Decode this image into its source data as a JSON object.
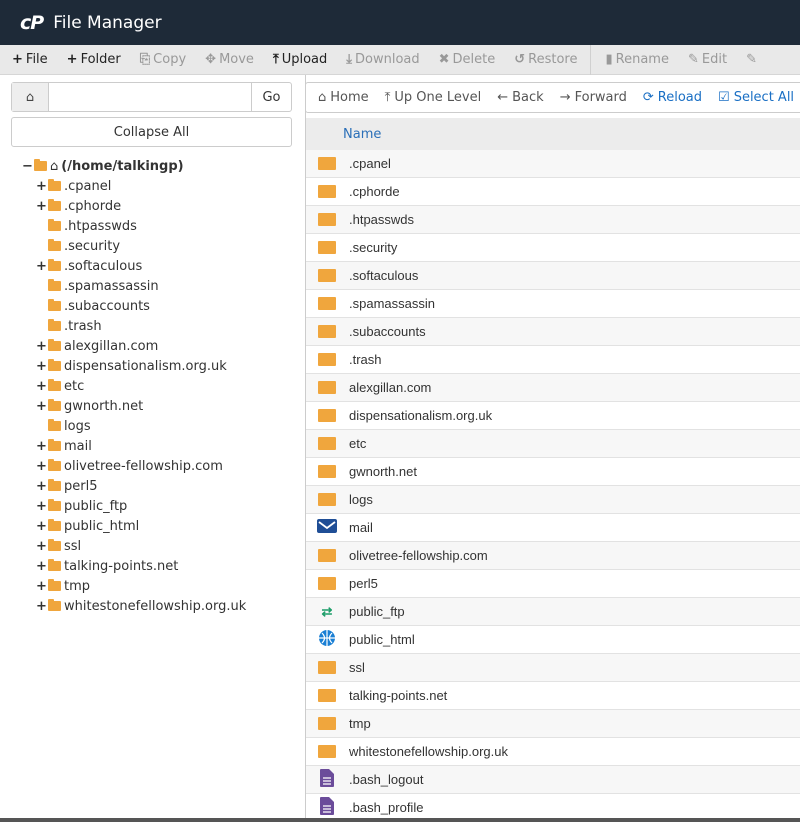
{
  "header": {
    "logo": "cP",
    "title": "File Manager"
  },
  "toolbar": [
    {
      "icon": "plus-icon",
      "glyph": "+",
      "label": "File",
      "enabled": true
    },
    {
      "icon": "plus-icon",
      "glyph": "+",
      "label": "Folder",
      "enabled": true
    },
    {
      "icon": "copy-icon",
      "glyph": "⎘",
      "label": "Copy",
      "enabled": false
    },
    {
      "icon": "move-icon",
      "glyph": "✥",
      "label": "Move",
      "enabled": false
    },
    {
      "icon": "upload-icon",
      "glyph": "⤒",
      "label": "Upload",
      "enabled": true
    },
    {
      "icon": "download-icon",
      "glyph": "⤓",
      "label": "Download",
      "enabled": false
    },
    {
      "icon": "delete-icon",
      "glyph": "✖",
      "label": "Delete",
      "enabled": false
    },
    {
      "icon": "restore-icon",
      "glyph": "↺",
      "label": "Restore",
      "enabled": false
    },
    {
      "icon": "rename-icon",
      "glyph": "▮",
      "label": "Rename",
      "enabled": false
    },
    {
      "icon": "edit-icon",
      "glyph": "✎",
      "label": "Edit",
      "enabled": false
    },
    {
      "icon": "html-editor-icon",
      "glyph": "✎",
      "label": "",
      "enabled": false
    }
  ],
  "search": {
    "value": "",
    "go_label": "Go"
  },
  "collapse_label": "Collapse All",
  "tree": {
    "root": "(/home/talkingp)",
    "items": [
      {
        "label": ".cpanel",
        "expandable": true
      },
      {
        "label": ".cphorde",
        "expandable": true
      },
      {
        "label": ".htpasswds",
        "expandable": false
      },
      {
        "label": ".security",
        "expandable": false
      },
      {
        "label": ".softaculous",
        "expandable": true
      },
      {
        "label": ".spamassassin",
        "expandable": false
      },
      {
        "label": ".subaccounts",
        "expandable": false
      },
      {
        "label": ".trash",
        "expandable": false
      },
      {
        "label": "alexgillan.com",
        "expandable": true
      },
      {
        "label": "dispensationalism.org.uk",
        "expandable": true
      },
      {
        "label": "etc",
        "expandable": true
      },
      {
        "label": "gwnorth.net",
        "expandable": true
      },
      {
        "label": "logs",
        "expandable": false
      },
      {
        "label": "mail",
        "expandable": true
      },
      {
        "label": "olivetree-fellowship.com",
        "expandable": true
      },
      {
        "label": "perl5",
        "expandable": true
      },
      {
        "label": "public_ftp",
        "expandable": true
      },
      {
        "label": "public_html",
        "expandable": true
      },
      {
        "label": "ssl",
        "expandable": true
      },
      {
        "label": "talking-points.net",
        "expandable": true
      },
      {
        "label": "tmp",
        "expandable": true
      },
      {
        "label": "whitestonefellowship.org.uk",
        "expandable": true
      }
    ]
  },
  "nav": [
    {
      "icon": "home-icon",
      "glyph": "⌂",
      "label": "Home",
      "accent": false
    },
    {
      "icon": "up-level-icon",
      "glyph": "⤒",
      "label": "Up One Level",
      "accent": false
    },
    {
      "icon": "back-icon",
      "glyph": "←",
      "label": "Back",
      "accent": false
    },
    {
      "icon": "forward-icon",
      "glyph": "→",
      "label": "Forward",
      "accent": false
    },
    {
      "icon": "reload-icon",
      "glyph": "⟳",
      "label": "Reload",
      "accent": true
    },
    {
      "icon": "select-all-icon",
      "glyph": "☑",
      "label": "Select All",
      "accent": true
    }
  ],
  "table": {
    "header": "Name",
    "rows": [
      {
        "name": ".cpanel",
        "type": "folder"
      },
      {
        "name": ".cphorde",
        "type": "folder"
      },
      {
        "name": ".htpasswds",
        "type": "folder"
      },
      {
        "name": ".security",
        "type": "folder"
      },
      {
        "name": ".softaculous",
        "type": "folder"
      },
      {
        "name": ".spamassassin",
        "type": "folder"
      },
      {
        "name": ".subaccounts",
        "type": "folder"
      },
      {
        "name": ".trash",
        "type": "folder"
      },
      {
        "name": "alexgillan.com",
        "type": "folder"
      },
      {
        "name": "dispensationalism.org.uk",
        "type": "folder"
      },
      {
        "name": "etc",
        "type": "folder"
      },
      {
        "name": "gwnorth.net",
        "type": "folder"
      },
      {
        "name": "logs",
        "type": "folder"
      },
      {
        "name": "mail",
        "type": "mail"
      },
      {
        "name": "olivetree-fellowship.com",
        "type": "folder"
      },
      {
        "name": "perl5",
        "type": "folder"
      },
      {
        "name": "public_ftp",
        "type": "ftp"
      },
      {
        "name": "public_html",
        "type": "web"
      },
      {
        "name": "ssl",
        "type": "folder"
      },
      {
        "name": "talking-points.net",
        "type": "folder"
      },
      {
        "name": "tmp",
        "type": "folder"
      },
      {
        "name": "whitestonefellowship.org.uk",
        "type": "folder"
      },
      {
        "name": ".bash_logout",
        "type": "file"
      },
      {
        "name": ".bash_profile",
        "type": "file"
      }
    ]
  },
  "colors": {
    "header_bg": "#1e2a38",
    "folder": "#f0a63d",
    "link": "#1a6fc4",
    "mail": "#1f4e96",
    "ftp": "#1e9e6a",
    "web": "#1a7fd4",
    "file": "#6b4c9a"
  }
}
